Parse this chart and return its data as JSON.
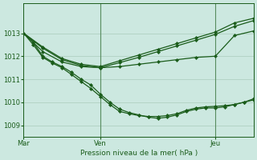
{
  "bg_color": "#cce8e0",
  "grid_color": "#aaccbc",
  "line_color": "#1a5c1a",
  "ylabel": "Pression niveau de la mer( hPa )",
  "ylim": [
    1008.5,
    1014.3
  ],
  "yticks": [
    1009,
    1010,
    1011,
    1012,
    1013
  ],
  "xlim": [
    0,
    48
  ],
  "xtick_positions": [
    0,
    16,
    40
  ],
  "xtick_labels": [
    "Mar",
    "Ven",
    "Jeu"
  ],
  "vline_positions": [
    16,
    40
  ],
  "series": [
    {
      "x": [
        0,
        4,
        8,
        12,
        16,
        20,
        24,
        28,
        32,
        36,
        40,
        44,
        48
      ],
      "y": [
        1013.0,
        1012.4,
        1011.9,
        1011.65,
        1011.55,
        1011.8,
        1012.05,
        1012.3,
        1012.55,
        1012.8,
        1013.05,
        1013.45,
        1013.65
      ]
    },
    {
      "x": [
        0,
        4,
        8,
        12,
        16,
        20,
        24,
        28,
        32,
        36,
        40,
        44,
        48
      ],
      "y": [
        1013.0,
        1012.35,
        1011.85,
        1011.6,
        1011.5,
        1011.72,
        1011.95,
        1012.2,
        1012.45,
        1012.7,
        1012.95,
        1013.3,
        1013.55
      ]
    },
    {
      "x": [
        0,
        4,
        8,
        12,
        16,
        20,
        24,
        28,
        32,
        36,
        40,
        44,
        48
      ],
      "y": [
        1013.0,
        1012.2,
        1011.75,
        1011.55,
        1011.5,
        1011.55,
        1011.65,
        1011.75,
        1011.85,
        1011.95,
        1012.0,
        1012.9,
        1013.1
      ]
    },
    {
      "x": [
        0,
        2,
        4,
        6,
        8,
        10,
        12,
        14,
        16,
        18,
        20,
        22,
        24,
        26,
        28,
        30,
        32,
        34,
        36,
        38,
        40,
        42,
        44,
        46,
        48
      ],
      "y": [
        1013.0,
        1012.6,
        1012.0,
        1011.75,
        1011.55,
        1011.3,
        1011.0,
        1010.75,
        1010.35,
        1010.0,
        1009.7,
        1009.55,
        1009.45,
        1009.35,
        1009.3,
        1009.35,
        1009.45,
        1009.6,
        1009.7,
        1009.75,
        1009.75,
        1009.8,
        1009.9,
        1010.0,
        1010.1
      ]
    },
    {
      "x": [
        0,
        2,
        4,
        6,
        8,
        10,
        12,
        14,
        16,
        18,
        20,
        22,
        24,
        26,
        28,
        30,
        32,
        34,
        36,
        38,
        40,
        42,
        44,
        46,
        48
      ],
      "y": [
        1013.0,
        1012.5,
        1011.95,
        1011.7,
        1011.5,
        1011.2,
        1010.9,
        1010.6,
        1010.25,
        1009.9,
        1009.6,
        1009.5,
        1009.42,
        1009.38,
        1009.38,
        1009.42,
        1009.5,
        1009.65,
        1009.75,
        1009.8,
        1009.82,
        1009.85,
        1009.9,
        1010.0,
        1010.15
      ]
    }
  ]
}
